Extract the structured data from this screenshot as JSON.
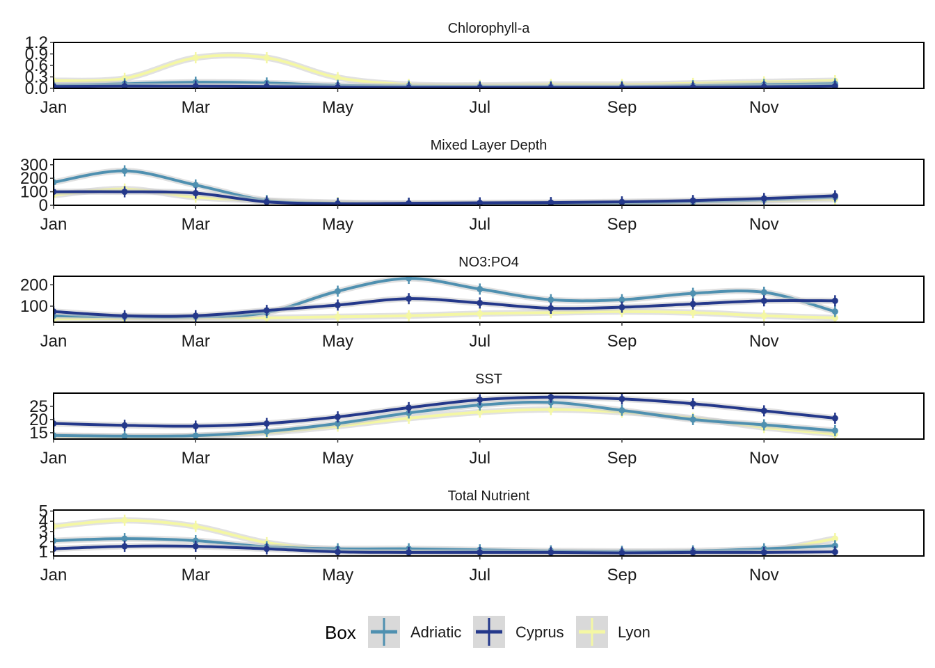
{
  "chart_data": [
    {
      "type": "line",
      "title": "Chlorophyll-a",
      "x_ticks": [
        "Jan",
        "Mar",
        "May",
        "Jul",
        "Sep",
        "Nov"
      ],
      "y_ticks": [
        "0.0",
        "0.3",
        "0.6",
        "0.9",
        "1.2"
      ],
      "ylim": [
        0,
        1.2
      ],
      "x": [
        1,
        2,
        3,
        4,
        5,
        6,
        7,
        8,
        9,
        10,
        11,
        12
      ],
      "series": [
        {
          "name": "Adriatic",
          "values": [
            0.08,
            0.12,
            0.16,
            0.14,
            0.08,
            0.06,
            0.05,
            0.05,
            0.05,
            0.07,
            0.1,
            0.12
          ]
        },
        {
          "name": "Cyprus",
          "values": [
            0.05,
            0.06,
            0.06,
            0.05,
            0.03,
            0.02,
            0.02,
            0.02,
            0.02,
            0.03,
            0.04,
            0.06
          ]
        },
        {
          "name": "Lyon",
          "values": [
            0.2,
            0.26,
            0.8,
            0.8,
            0.28,
            0.1,
            0.08,
            0.1,
            0.1,
            0.13,
            0.17,
            0.2
          ]
        }
      ]
    },
    {
      "type": "line",
      "title": "Mixed Layer Depth",
      "x_ticks": [
        "Jan",
        "Mar",
        "May",
        "Jul",
        "Sep",
        "Nov"
      ],
      "y_ticks": [
        "0",
        "100",
        "200",
        "300"
      ],
      "ylim": [
        0,
        340
      ],
      "x": [
        1,
        2,
        3,
        4,
        5,
        6,
        7,
        8,
        9,
        10,
        11,
        12
      ],
      "series": [
        {
          "name": "Adriatic",
          "values": [
            170,
            255,
            150,
            35,
            15,
            10,
            10,
            12,
            15,
            25,
            40,
            60
          ]
        },
        {
          "name": "Cyprus",
          "values": [
            100,
            100,
            90,
            25,
            12,
            15,
            18,
            20,
            25,
            35,
            50,
            70
          ]
        },
        {
          "name": "Lyon",
          "values": [
            75,
            120,
            60,
            35,
            20,
            12,
            12,
            15,
            20,
            25,
            35,
            45
          ]
        }
      ]
    },
    {
      "type": "line",
      "title": "NO3:PO4",
      "x_ticks": [
        "Jan",
        "Mar",
        "May",
        "Jul",
        "Sep",
        "Nov"
      ],
      "y_ticks": [
        "100",
        "200"
      ],
      "ylim": [
        25,
        240
      ],
      "x": [
        1,
        2,
        3,
        4,
        5,
        6,
        7,
        8,
        9,
        10,
        11,
        12
      ],
      "series": [
        {
          "name": "Adriatic",
          "values": [
            55,
            50,
            50,
            70,
            170,
            230,
            180,
            130,
            130,
            160,
            165,
            75
          ]
        },
        {
          "name": "Cyprus",
          "values": [
            75,
            55,
            55,
            80,
            105,
            135,
            115,
            90,
            95,
            110,
            125,
            125
          ]
        },
        {
          "name": "Lyon",
          "values": [
            40,
            42,
            45,
            45,
            50,
            55,
            65,
            70,
            75,
            70,
            55,
            45
          ]
        }
      ]
    },
    {
      "type": "line",
      "title": "SST",
      "x_ticks": [
        "Jan",
        "Mar",
        "May",
        "Jul",
        "Sep",
        "Nov"
      ],
      "y_ticks": [
        "15",
        "20",
        "25"
      ],
      "ylim": [
        12.6,
        30
      ],
      "x": [
        1,
        2,
        3,
        4,
        5,
        6,
        7,
        8,
        9,
        10,
        11,
        12
      ],
      "series": [
        {
          "name": "Adriatic",
          "values": [
            14.0,
            13.7,
            13.9,
            15.5,
            18.5,
            22.5,
            25.5,
            26.5,
            23.5,
            20.0,
            18.0,
            15.8
          ]
        },
        {
          "name": "Cyprus",
          "values": [
            18.5,
            17.8,
            17.5,
            18.5,
            21.0,
            24.5,
            27.5,
            28.5,
            27.8,
            26.0,
            23.3,
            20.5
          ]
        },
        {
          "name": "Lyon",
          "values": [
            13.8,
            13.5,
            13.8,
            15.0,
            17.5,
            20.5,
            22.8,
            23.8,
            22.8,
            20.5,
            17.0,
            14.5
          ]
        }
      ]
    },
    {
      "type": "line",
      "title": "Total Nutrient",
      "x_ticks": [
        "Jan",
        "Mar",
        "May",
        "Jul",
        "Sep",
        "Nov"
      ],
      "y_ticks": [
        "1",
        "2",
        "3",
        "4",
        "5"
      ],
      "ylim": [
        0.6,
        5.1
      ],
      "x": [
        1,
        2,
        3,
        4,
        5,
        6,
        7,
        8,
        9,
        10,
        11,
        12
      ],
      "series": [
        {
          "name": "Adriatic",
          "values": [
            2.1,
            2.3,
            2.1,
            1.5,
            1.3,
            1.3,
            1.2,
            1.1,
            1.05,
            1.1,
            1.3,
            1.6
          ]
        },
        {
          "name": "Cyprus",
          "values": [
            1.3,
            1.55,
            1.55,
            1.3,
            1.0,
            0.95,
            0.95,
            0.95,
            0.9,
            0.95,
            0.95,
            1.0
          ]
        },
        {
          "name": "Lyon",
          "values": [
            3.5,
            4.1,
            3.5,
            1.9,
            1.2,
            1.05,
            1.0,
            0.95,
            0.95,
            0.95,
            1.1,
            2.3
          ]
        }
      ]
    }
  ],
  "legend": {
    "title": "Box",
    "items": [
      {
        "name": "Adriatic",
        "color": "#4f90b0"
      },
      {
        "name": "Cyprus",
        "color": "#24388a"
      },
      {
        "name": "Lyon",
        "color": "#f4f7a4"
      }
    ]
  }
}
